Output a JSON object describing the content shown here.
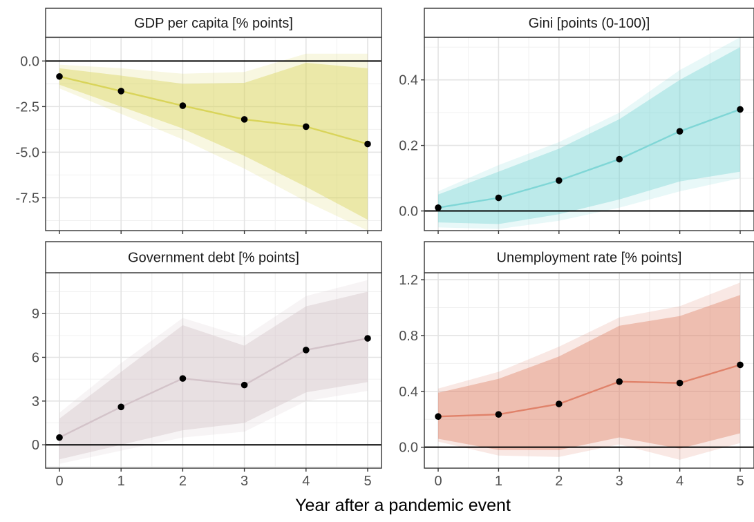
{
  "chart_data": {
    "type": "line",
    "xlabel": "Year after a pandemic event",
    "x": [
      0,
      1,
      2,
      3,
      4,
      5
    ],
    "x_ticks": [
      0,
      1,
      2,
      3,
      4,
      5
    ],
    "grid": true,
    "panels": [
      {
        "title": "GDP per capita [% points]",
        "color": "#d9d45a",
        "ylim": [
          -9.3,
          1.3
        ],
        "y_ticks": [
          0,
          -2.5,
          -5,
          -7.5
        ],
        "y_tick_labels": [
          "0.0",
          "-2.5",
          "-5.0",
          "-7.5"
        ],
        "values": [
          -0.85,
          -1.65,
          -2.45,
          -3.2,
          -3.6,
          -4.55
        ],
        "band_inner_lower": [
          -1.3,
          -2.5,
          -3.7,
          -5.2,
          -6.9,
          -8.7
        ],
        "band_inner_upper": [
          -0.4,
          -0.8,
          -1.25,
          -1.2,
          -0.1,
          -0.4
        ],
        "band_outer_lower": [
          -1.5,
          -2.9,
          -4.3,
          -5.9,
          -7.7,
          -9.3
        ],
        "band_outer_upper": [
          -0.2,
          -0.4,
          -0.7,
          -0.6,
          0.4,
          0.4
        ]
      },
      {
        "title": "Gini [points (0-100)]",
        "color": "#7fd6d6",
        "ylim": [
          -0.06,
          0.53
        ],
        "y_ticks": [
          0,
          0.2,
          0.4
        ],
        "y_tick_labels": [
          "0.0",
          "0.2",
          "0.4"
        ],
        "values": [
          0.01,
          0.04,
          0.093,
          0.158,
          0.243,
          0.31
        ],
        "band_inner_lower": [
          -0.035,
          -0.04,
          -0.01,
          0.035,
          0.09,
          0.12
        ],
        "band_inner_upper": [
          0.05,
          0.12,
          0.19,
          0.28,
          0.4,
          0.5
        ],
        "band_outer_lower": [
          -0.05,
          -0.055,
          -0.03,
          0.01,
          0.06,
          0.1
        ],
        "band_outer_upper": [
          0.06,
          0.14,
          0.21,
          0.3,
          0.43,
          0.53
        ]
      },
      {
        "title": "Government debt [% points]",
        "color": "#d3c3c9",
        "ylim": [
          -1.6,
          11.8
        ],
        "y_ticks": [
          0,
          3,
          6,
          9
        ],
        "y_tick_labels": [
          "0",
          "3",
          "6",
          "9"
        ],
        "values": [
          0.5,
          2.6,
          4.55,
          4.1,
          6.5,
          7.3
        ],
        "band_inner_lower": [
          -1.0,
          0.0,
          1.0,
          1.5,
          3.6,
          4.3
        ],
        "band_inner_upper": [
          1.8,
          5.0,
          8.2,
          6.8,
          9.5,
          10.5
        ],
        "band_outer_lower": [
          -1.3,
          -0.4,
          0.5,
          0.9,
          3.0,
          3.7
        ],
        "band_outer_upper": [
          2.2,
          5.6,
          8.7,
          7.4,
          10.2,
          11.3
        ]
      },
      {
        "title": "Unemployment rate [% points]",
        "color": "#e0826a",
        "ylim": [
          -0.15,
          1.25
        ],
        "y_ticks": [
          0,
          0.4,
          0.8,
          1.2
        ],
        "y_tick_labels": [
          "0.0",
          "0.4",
          "0.8",
          "1.2"
        ],
        "values": [
          0.22,
          0.235,
          0.31,
          0.47,
          0.46,
          0.59
        ],
        "band_inner_lower": [
          0.06,
          -0.02,
          -0.02,
          0.07,
          -0.01,
          0.1
        ],
        "band_inner_upper": [
          0.39,
          0.49,
          0.65,
          0.87,
          0.94,
          1.09
        ],
        "band_outer_lower": [
          0.04,
          -0.06,
          -0.07,
          0.02,
          -0.09,
          0.03
        ],
        "band_outer_upper": [
          0.42,
          0.54,
          0.72,
          0.93,
          1.01,
          1.18
        ]
      }
    ]
  }
}
